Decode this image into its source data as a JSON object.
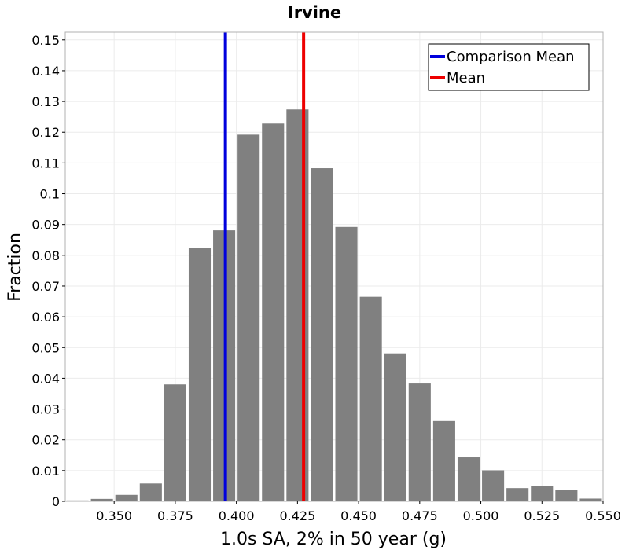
{
  "chart_data": {
    "type": "bar",
    "title": "Irvine",
    "xlabel": "1.0s SA, 2% in 50 year (g)",
    "ylabel": "Fraction",
    "xlim": [
      0.33,
      0.55
    ],
    "ylim": [
      0,
      0.1525
    ],
    "grid": true,
    "legend_position": "top-right",
    "bar_color": "#808080",
    "bin_width": 0.01,
    "bin_centers": [
      0.335,
      0.345,
      0.355,
      0.365,
      0.375,
      0.385,
      0.395,
      0.405,
      0.415,
      0.425,
      0.435,
      0.445,
      0.455,
      0.465,
      0.475,
      0.485,
      0.495,
      0.505,
      0.515,
      0.525,
      0.535,
      0.545
    ],
    "values": [
      0.0003,
      0.0008,
      0.0021,
      0.0058,
      0.038,
      0.0823,
      0.0881,
      0.1192,
      0.1228,
      0.1274,
      0.1083,
      0.0892,
      0.0665,
      0.0481,
      0.0383,
      0.0261,
      0.0143,
      0.0101,
      0.0043,
      0.0051,
      0.0037,
      0.0009
    ],
    "x_ticks": [
      {
        "value": 0.35,
        "label": "0.350"
      },
      {
        "value": 0.375,
        "label": "0.375"
      },
      {
        "value": 0.4,
        "label": "0.400"
      },
      {
        "value": 0.425,
        "label": "0.425"
      },
      {
        "value": 0.45,
        "label": "0.450"
      },
      {
        "value": 0.475,
        "label": "0.475"
      },
      {
        "value": 0.5,
        "label": "0.500"
      },
      {
        "value": 0.525,
        "label": "0.525"
      },
      {
        "value": 0.55,
        "label": "0.550"
      }
    ],
    "y_ticks": [
      {
        "value": 0,
        "label": "0"
      },
      {
        "value": 0.01,
        "label": "0.01"
      },
      {
        "value": 0.02,
        "label": "0.02"
      },
      {
        "value": 0.03,
        "label": "0.03"
      },
      {
        "value": 0.04,
        "label": "0.04"
      },
      {
        "value": 0.05,
        "label": "0.05"
      },
      {
        "value": 0.06,
        "label": "0.06"
      },
      {
        "value": 0.07,
        "label": "0.07"
      },
      {
        "value": 0.08,
        "label": "0.08"
      },
      {
        "value": 0.09,
        "label": "0.09"
      },
      {
        "value": 0.1,
        "label": "0.1"
      },
      {
        "value": 0.11,
        "label": "0.11"
      },
      {
        "value": 0.12,
        "label": "0.12"
      },
      {
        "value": 0.13,
        "label": "0.13"
      },
      {
        "value": 0.14,
        "label": "0.14"
      },
      {
        "value": 0.15,
        "label": "0.15"
      }
    ],
    "vertical_lines": [
      {
        "name": "Comparison Mean",
        "x": 0.3955,
        "color": "#0000dd"
      },
      {
        "name": "Mean",
        "x": 0.4275,
        "color": "#ee0000"
      }
    ]
  }
}
